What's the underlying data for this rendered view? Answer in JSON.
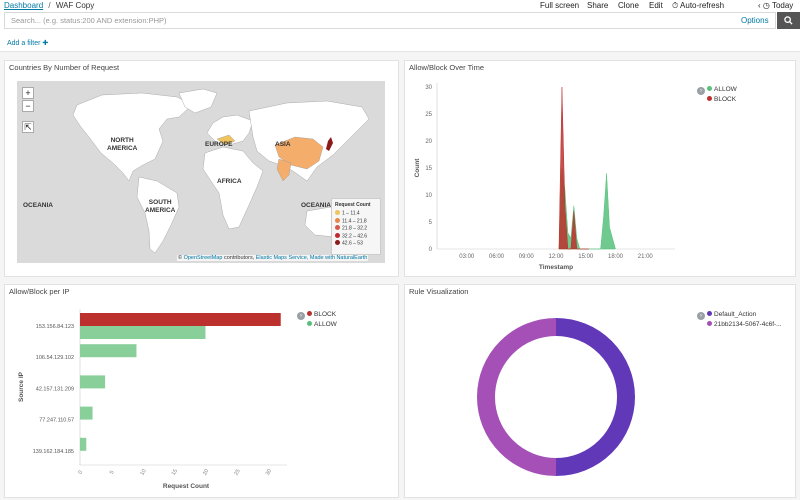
{
  "header": {
    "breadcrumb_root": "Dashboard",
    "breadcrumb_sep": "/",
    "breadcrumb_current": "WAF Copy",
    "menu": {
      "full_screen": "Full screen",
      "share": "Share",
      "clone": "Clone",
      "edit": "Edit",
      "auto_refresh": "Auto-refresh",
      "time_range": "Today"
    }
  },
  "query": {
    "placeholder": "Search... (e.g. status:200 AND extension:PHP)",
    "options_label": "Options"
  },
  "filters": {
    "add_filter_label": "Add a filter"
  },
  "panels": {
    "map": {
      "title": "Countries By Number of Request",
      "zoom_in": "+",
      "zoom_out": "−",
      "region_labels": {
        "north_america": "NORTH\nAMERICA",
        "south_america": "SOUTH\nAMERICA",
        "europe": "EUROPE",
        "asia": "ASIA",
        "africa": "AFRICA",
        "oceania_left": "OCEANIA",
        "oceania_right": "OCEANIA"
      },
      "legend_title": "Request Count",
      "legend": [
        {
          "label": "1 – 11.4",
          "color": "#f0c35e"
        },
        {
          "label": "11.4 – 21.8",
          "color": "#e8874c"
        },
        {
          "label": "21.8 – 32.2",
          "color": "#d7584a"
        },
        {
          "label": "32.2 – 42.6",
          "color": "#bf2b32"
        },
        {
          "label": "42.6 – 53",
          "color": "#8b1a1a"
        }
      ],
      "attribution": {
        "copy": "©",
        "osm": "OpenStreetMap",
        "contrib": "contributors,",
        "elastic": "Elastic Maps Service,",
        "natural": "Made with NaturalEarth"
      },
      "colors": {
        "ocean": "#dadada",
        "land": "#ffffff",
        "highlight": "#f5ad6b",
        "japan": "#8b1a1a",
        "europe": "#f0c35e"
      }
    },
    "allow_block_time": {
      "title": "Allow/Block Over Time",
      "legend": [
        {
          "label": "ALLOW",
          "color": "#57c17b"
        },
        {
          "label": "BLOCK",
          "color": "#bc312d"
        }
      ]
    },
    "allow_block_ip": {
      "title": "Allow/Block per IP",
      "legend": [
        {
          "label": "BLOCK",
          "color": "#bc312d"
        },
        {
          "label": "ALLOW",
          "color": "#57c17b"
        }
      ]
    },
    "rule_viz": {
      "title": "Rule Visualization",
      "legend": [
        {
          "label": "Default_Action",
          "color": "#6138b8"
        },
        {
          "label": "21bb2134-5067-4c6f-...",
          "color": "#a450b7"
        }
      ]
    }
  },
  "chart_data": [
    {
      "type": "area",
      "title": "Allow/Block Over Time",
      "xlabel": "Timestamp",
      "ylabel": "Count",
      "x_ticks": [
        "03:00",
        "06:00",
        "09:00",
        "12:00",
        "15:00",
        "18:00",
        "21:00"
      ],
      "y_ticks": [
        0,
        5,
        10,
        15,
        20,
        25,
        30
      ],
      "ylim": [
        0,
        30
      ],
      "xlim_hours": [
        0,
        24
      ],
      "legend_position": "top-right",
      "series": [
        {
          "name": "ALLOW",
          "color": "#57c17b",
          "x": [
            12.3,
            12.6,
            12.9,
            13.2,
            13.5,
            13.8,
            14.1,
            14.4,
            14.7,
            15.0,
            15.3,
            16.5,
            16.8,
            17.1,
            17.4,
            17.7,
            18.0
          ],
          "y": [
            0,
            15,
            11,
            3,
            2,
            8,
            2,
            0,
            0,
            0,
            0,
            0,
            6,
            14,
            4,
            2,
            0
          ]
        },
        {
          "name": "BLOCK",
          "color": "#bc312d",
          "x": [
            12.3,
            12.6,
            12.9,
            13.2,
            13.5,
            13.8,
            14.1,
            14.4,
            14.7,
            15.0,
            15.3
          ],
          "y": [
            0,
            30,
            8,
            0,
            0,
            7,
            0,
            0,
            0,
            0,
            0
          ]
        }
      ]
    },
    {
      "type": "bar",
      "orientation": "horizontal",
      "title": "Allow/Block per IP",
      "xlabel": "Request Count",
      "ylabel": "Source IP",
      "categories": [
        "153.156.84.123",
        "106.54.129.102",
        "42.157.131.209",
        "77.247.110.57",
        "139.162.184.185"
      ],
      "x_ticks": [
        0,
        5,
        10,
        15,
        20,
        25,
        30
      ],
      "xlim": [
        0,
        33
      ],
      "legend_position": "top-right",
      "series": [
        {
          "name": "BLOCK",
          "color": "#bc312d",
          "values": [
            32,
            0,
            0,
            0,
            0
          ]
        },
        {
          "name": "ALLOW",
          "color": "#88cf99",
          "values": [
            20,
            9,
            4,
            2,
            1
          ]
        }
      ]
    },
    {
      "type": "pie",
      "title": "Rule Visualization",
      "donut": true,
      "legend_position": "top-right",
      "slices": [
        {
          "label": "Default_Action",
          "value": 50,
          "color": "#6138b8"
        },
        {
          "label": "21bb2134-5067-4c6f-...",
          "value": 50,
          "color": "#a450b7"
        }
      ]
    }
  ]
}
